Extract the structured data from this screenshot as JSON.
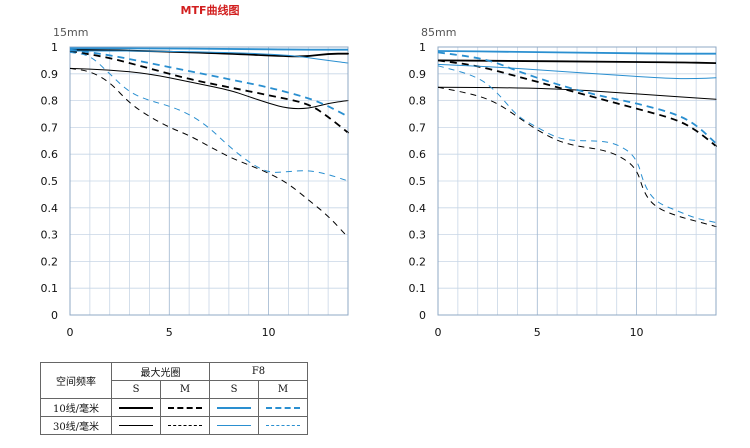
{
  "page": {
    "title": "MTF曲线图"
  },
  "chart_data": [
    {
      "type": "line",
      "title": "15mm",
      "xlim": [
        0,
        14
      ],
      "ylim": [
        0,
        1
      ],
      "x_ticks": [
        "0",
        "5",
        "10"
      ],
      "y_ticks": [
        "0",
        "0.1",
        "0.2",
        "0.3",
        "0.4",
        "0.5",
        "0.6",
        "0.7",
        "0.8",
        "0.9",
        "1"
      ],
      "grid": true,
      "series": [
        {
          "name": "最大光圈 10线/毫米 S",
          "color": "#000000",
          "dash": "solid",
          "width": 1.8,
          "points": [
            [
              0,
              0.99
            ],
            [
              4,
              0.985
            ],
            [
              8,
              0.975
            ],
            [
              11,
              0.965
            ],
            [
              12,
              0.965
            ],
            [
              13,
              0.975
            ],
            [
              14,
              0.975
            ]
          ]
        },
        {
          "name": "最大光圈 10线/毫米 M",
          "color": "#000000",
          "dash": "dashed",
          "width": 1.8,
          "points": [
            [
              0,
              0.985
            ],
            [
              2,
              0.96
            ],
            [
              4,
              0.92
            ],
            [
              6,
              0.88
            ],
            [
              8,
              0.85
            ],
            [
              10,
              0.82
            ],
            [
              12,
              0.79
            ],
            [
              13,
              0.74
            ],
            [
              14,
              0.68
            ]
          ]
        },
        {
          "name": "最大光圈 30线/毫米 S",
          "color": "#000000",
          "dash": "solid",
          "width": 1,
          "points": [
            [
              0,
              0.92
            ],
            [
              2,
              0.915
            ],
            [
              4,
              0.9
            ],
            [
              6,
              0.87
            ],
            [
              8,
              0.84
            ],
            [
              9,
              0.815
            ],
            [
              10,
              0.79
            ],
            [
              11,
              0.77
            ],
            [
              12,
              0.77
            ],
            [
              13,
              0.79
            ],
            [
              14,
              0.8
            ]
          ]
        },
        {
          "name": "最大光圈 30线/毫米 M",
          "color": "#000000",
          "dash": "dashed",
          "width": 1,
          "points": [
            [
              0,
              0.92
            ],
            [
              1,
              0.91
            ],
            [
              2,
              0.87
            ],
            [
              3,
              0.79
            ],
            [
              4,
              0.74
            ],
            [
              5,
              0.7
            ],
            [
              6,
              0.67
            ],
            [
              7,
              0.63
            ],
            [
              8,
              0.59
            ],
            [
              9,
              0.56
            ],
            [
              10,
              0.53
            ],
            [
              11,
              0.49
            ],
            [
              12,
              0.43
            ],
            [
              13,
              0.37
            ],
            [
              14,
              0.29
            ]
          ]
        },
        {
          "name": "F8 10线/毫米 S",
          "color": "#2a8fd0",
          "dash": "solid",
          "width": 1.8,
          "points": [
            [
              0,
              0.995
            ],
            [
              4,
              0.995
            ],
            [
              8,
              0.993
            ],
            [
              12,
              0.99
            ],
            [
              14,
              0.99
            ]
          ]
        },
        {
          "name": "F8 10线/毫米 M",
          "color": "#2a8fd0",
          "dash": "dashed",
          "width": 1.8,
          "points": [
            [
              0,
              0.99
            ],
            [
              2,
              0.97
            ],
            [
              4,
              0.94
            ],
            [
              6,
              0.91
            ],
            [
              8,
              0.88
            ],
            [
              10,
              0.85
            ],
            [
              12,
              0.81
            ],
            [
              13,
              0.78
            ],
            [
              14,
              0.74
            ]
          ]
        },
        {
          "name": "F8 30线/毫米 S",
          "color": "#2a8fd0",
          "dash": "solid",
          "width": 1,
          "points": [
            [
              0,
              0.985
            ],
            [
              4,
              0.985
            ],
            [
              8,
              0.98
            ],
            [
              11,
              0.97
            ],
            [
              12,
              0.96
            ],
            [
              13,
              0.95
            ],
            [
              14,
              0.94
            ]
          ]
        },
        {
          "name": "F8 30线/毫米 M",
          "color": "#2a8fd0",
          "dash": "dashed",
          "width": 1,
          "points": [
            [
              0,
              0.98
            ],
            [
              1,
              0.97
            ],
            [
              2,
              0.9
            ],
            [
              3,
              0.83
            ],
            [
              4,
              0.8
            ],
            [
              5,
              0.78
            ],
            [
              6,
              0.75
            ],
            [
              7,
              0.7
            ],
            [
              8,
              0.63
            ],
            [
              9,
              0.57
            ],
            [
              10,
              0.53
            ],
            [
              11,
              0.535
            ],
            [
              12,
              0.54
            ],
            [
              13,
              0.525
            ],
            [
              14,
              0.5
            ]
          ]
        }
      ]
    },
    {
      "type": "line",
      "title": "85mm",
      "xlim": [
        0,
        14
      ],
      "ylim": [
        0,
        1
      ],
      "x_ticks": [
        "0",
        "5",
        "10"
      ],
      "y_ticks": [
        "0",
        "0.1",
        "0.2",
        "0.3",
        "0.4",
        "0.5",
        "0.6",
        "0.7",
        "0.8",
        "0.9",
        "1"
      ],
      "grid": true,
      "series": [
        {
          "name": "最大光圈 10线/毫米 S",
          "color": "#000000",
          "dash": "solid",
          "width": 1.8,
          "points": [
            [
              0,
              0.95
            ],
            [
              4,
              0.948
            ],
            [
              8,
              0.945
            ],
            [
              12,
              0.943
            ],
            [
              14,
              0.94
            ]
          ]
        },
        {
          "name": "最大光圈 10线/毫米 M",
          "color": "#000000",
          "dash": "dashed",
          "width": 1.8,
          "points": [
            [
              0,
              0.95
            ],
            [
              2,
              0.93
            ],
            [
              4,
              0.89
            ],
            [
              6,
              0.85
            ],
            [
              8,
              0.81
            ],
            [
              10,
              0.77
            ],
            [
              12,
              0.73
            ],
            [
              13,
              0.69
            ],
            [
              14,
              0.63
            ]
          ]
        },
        {
          "name": "最大光圈 30线/毫米 S",
          "color": "#000000",
          "dash": "solid",
          "width": 1,
          "points": [
            [
              0,
              0.85
            ],
            [
              4,
              0.848
            ],
            [
              7,
              0.84
            ],
            [
              9,
              0.83
            ],
            [
              11,
              0.82
            ],
            [
              13,
              0.81
            ],
            [
              14,
              0.805
            ]
          ]
        },
        {
          "name": "最大光圈 30线/毫米 M",
          "color": "#000000",
          "dash": "dashed",
          "width": 1,
          "points": [
            [
              0,
              0.85
            ],
            [
              2,
              0.82
            ],
            [
              3,
              0.79
            ],
            [
              4,
              0.74
            ],
            [
              5,
              0.69
            ],
            [
              6,
              0.65
            ],
            [
              7,
              0.63
            ],
            [
              8,
              0.62
            ],
            [
              9,
              0.6
            ],
            [
              10,
              0.55
            ],
            [
              10.4,
              0.45
            ],
            [
              11,
              0.4
            ],
            [
              12,
              0.37
            ],
            [
              13,
              0.35
            ],
            [
              14,
              0.33
            ]
          ]
        },
        {
          "name": "F8 10线/毫米 S",
          "color": "#2a8fd0",
          "dash": "solid",
          "width": 1.8,
          "points": [
            [
              0,
              0.985
            ],
            [
              4,
              0.982
            ],
            [
              8,
              0.978
            ],
            [
              12,
              0.975
            ],
            [
              14,
              0.975
            ]
          ]
        },
        {
          "name": "F8 10线/毫米 M",
          "color": "#2a8fd0",
          "dash": "dashed",
          "width": 1.8,
          "points": [
            [
              0,
              0.98
            ],
            [
              2,
              0.96
            ],
            [
              3,
              0.94
            ],
            [
              4,
              0.91
            ],
            [
              6,
              0.86
            ],
            [
              8,
              0.82
            ],
            [
              10,
              0.79
            ],
            [
              12,
              0.75
            ],
            [
              13,
              0.71
            ],
            [
              14,
              0.64
            ]
          ]
        },
        {
          "name": "F8 30线/毫米 S",
          "color": "#2a8fd0",
          "dash": "solid",
          "width": 1,
          "points": [
            [
              0,
              0.935
            ],
            [
              3,
              0.925
            ],
            [
              6,
              0.91
            ],
            [
              8,
              0.9
            ],
            [
              10,
              0.89
            ],
            [
              12,
              0.882
            ],
            [
              13,
              0.882
            ],
            [
              14,
              0.885
            ]
          ]
        },
        {
          "name": "F8 30线/毫米 M",
          "color": "#2a8fd0",
          "dash": "dashed",
          "width": 1,
          "points": [
            [
              0,
              0.93
            ],
            [
              2,
              0.89
            ],
            [
              3,
              0.83
            ],
            [
              4,
              0.74
            ],
            [
              5,
              0.7
            ],
            [
              6,
              0.66
            ],
            [
              7,
              0.65
            ],
            [
              8,
              0.65
            ],
            [
              9,
              0.64
            ],
            [
              10,
              0.59
            ],
            [
              10.4,
              0.48
            ],
            [
              11,
              0.42
            ],
            [
              12,
              0.39
            ],
            [
              13,
              0.36
            ],
            [
              14,
              0.345
            ]
          ]
        }
      ]
    }
  ],
  "legend": {
    "header": {
      "freq": "空间频率",
      "max_aperture": "最大光圈",
      "f8": "F8"
    },
    "s_label": "S",
    "m_label": "M",
    "rows": [
      {
        "label": "10线/毫米",
        "weight": "thick"
      },
      {
        "label": "30线/毫米",
        "weight": "thin"
      }
    ],
    "colors": {
      "max_aperture": "#000000",
      "f8": "#2a8fd0"
    }
  }
}
